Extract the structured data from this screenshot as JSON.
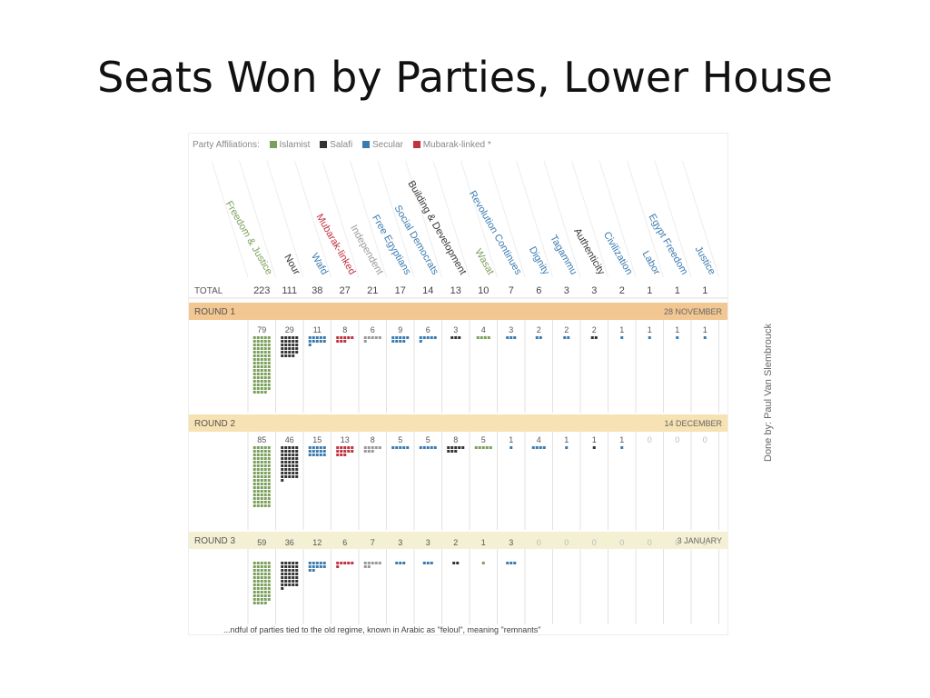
{
  "slide": {
    "title": "Seats Won by Parties, Lower House",
    "credit": "Done by: Paul Van Slembrouck"
  },
  "legend": {
    "prefix": "Party Affiliations:",
    "items": [
      {
        "label": "Islamist",
        "color": "#7ba05b"
      },
      {
        "label": "Salafi",
        "color": "#333333"
      },
      {
        "label": "Secular",
        "color": "#3a7bb0"
      },
      {
        "label": "Mubarak-linked *",
        "color": "#c0323f"
      }
    ]
  },
  "footnote": "...ndful of parties tied to the old regime, known in Arabic as \"feloul\", meaning \"remnants\"",
  "chart_data": {
    "type": "bar",
    "total_label": "TOTAL",
    "categories": [
      "Freedom & Justice",
      "Nour",
      "Wafd",
      "Mubarak-linked",
      "Independent",
      "Free Egyptians",
      "Social Democrats",
      "Building & Development",
      "Wasat",
      "Revolution Continues",
      "Dignity",
      "Tagammu",
      "Authenticity",
      "Civilization",
      "Labor",
      "Egypt Freedom",
      "Justice"
    ],
    "affiliations": [
      "Islamist",
      "Salafi",
      "Secular",
      "Mubarak-linked",
      "Independent",
      "Secular",
      "Secular",
      "Salafi",
      "Islamist",
      "Secular",
      "Secular",
      "Secular",
      "Salafi",
      "Secular",
      "Secular",
      "Secular",
      "Secular"
    ],
    "colors": {
      "Islamist": "#7ba05b",
      "Salafi": "#333333",
      "Secular": "#3a7bb0",
      "Mubarak-linked": "#c0323f",
      "Independent": "#999999"
    },
    "totals": [
      223,
      111,
      38,
      27,
      21,
      17,
      14,
      13,
      10,
      7,
      6,
      3,
      3,
      2,
      1,
      1,
      1
    ],
    "rounds": [
      {
        "name": "ROUND 1",
        "date": "28 NOVEMBER",
        "values": [
          79,
          29,
          11,
          8,
          6,
          9,
          6,
          3,
          4,
          3,
          2,
          2,
          2,
          1,
          1,
          1,
          1
        ]
      },
      {
        "name": "ROUND 2",
        "date": "14 DECEMBER",
        "values": [
          85,
          46,
          15,
          13,
          8,
          5,
          5,
          8,
          5,
          1,
          4,
          1,
          1,
          1,
          0,
          0,
          0
        ]
      },
      {
        "name": "ROUND 3",
        "date": "3 JANUARY",
        "values": [
          59,
          36,
          12,
          6,
          7,
          3,
          3,
          2,
          1,
          3,
          0,
          0,
          0,
          0,
          0,
          0,
          0
        ]
      }
    ]
  }
}
